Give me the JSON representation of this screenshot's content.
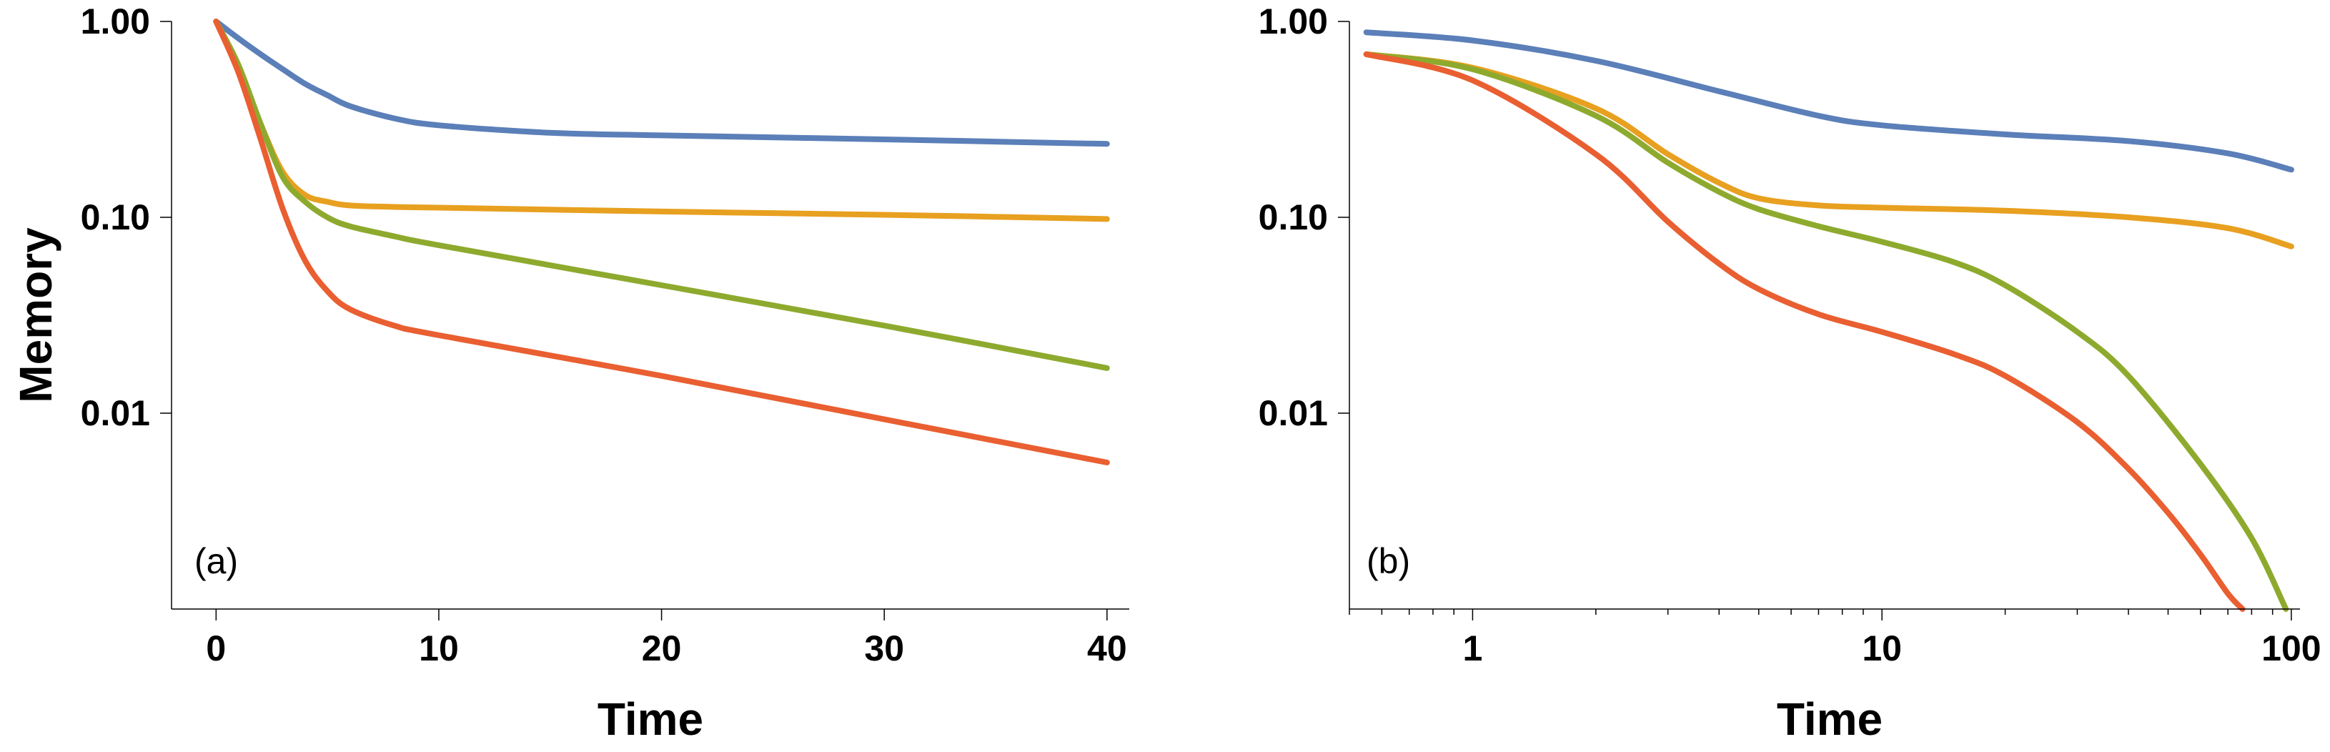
{
  "chart_data": [
    {
      "type": "line",
      "panel_label": "(a)",
      "xlabel": "Time",
      "ylabel": "Memory",
      "xscale": "linear",
      "yscale": "log",
      "xlim": [
        -2,
        41
      ],
      "ylim": [
        0.001,
        1.0
      ],
      "grid": false,
      "x_ticks": [
        0,
        10,
        20,
        30,
        40
      ],
      "x_tick_labels": [
        "0",
        "10",
        "20",
        "30",
        "40"
      ],
      "y_ticks": [
        1.0,
        0.1,
        0.01
      ],
      "y_tick_labels": [
        "1.00",
        "0.10",
        "0.01"
      ],
      "series": [
        {
          "name": "blue",
          "color": "#5b7fb8",
          "x": [
            0,
            1,
            2,
            3,
            4,
            5,
            6,
            8,
            10,
            15,
            20,
            30,
            40
          ],
          "y": [
            1.0,
            0.82,
            0.68,
            0.57,
            0.48,
            0.42,
            0.37,
            0.32,
            0.295,
            0.27,
            0.262,
            0.25,
            0.237
          ]
        },
        {
          "name": "orange",
          "color": "#e8a020",
          "x": [
            0,
            1,
            2,
            3,
            4,
            5,
            6,
            8,
            10,
            20,
            30,
            40
          ],
          "y": [
            1.0,
            0.6,
            0.3,
            0.17,
            0.13,
            0.12,
            0.115,
            0.113,
            0.112,
            0.107,
            0.103,
            0.098
          ]
        },
        {
          "name": "green",
          "color": "#8eaa2e",
          "x": [
            0,
            1,
            2,
            3,
            4,
            5,
            6,
            8,
            10,
            20,
            30,
            40
          ],
          "y": [
            1.0,
            0.6,
            0.3,
            0.16,
            0.12,
            0.1,
            0.09,
            0.08,
            0.072,
            0.045,
            0.028,
            0.017
          ]
        },
        {
          "name": "red",
          "color": "#e95f31",
          "x": [
            0,
            1,
            2,
            3,
            4,
            5,
            6,
            8,
            10,
            20,
            30,
            40
          ],
          "y": [
            1.0,
            0.55,
            0.25,
            0.11,
            0.06,
            0.042,
            0.034,
            0.028,
            0.025,
            0.0155,
            0.0093,
            0.0056
          ]
        }
      ]
    },
    {
      "type": "line",
      "panel_label": "(b)",
      "xlabel": "Time",
      "ylabel": "",
      "xscale": "log",
      "yscale": "log",
      "xlim": [
        0.5,
        105
      ],
      "ylim": [
        0.001,
        1.0
      ],
      "grid": false,
      "x_ticks": [
        1,
        10,
        100
      ],
      "x_tick_labels": [
        "1",
        "10",
        "100"
      ],
      "y_ticks": [
        1.0,
        0.1,
        0.01
      ],
      "y_tick_labels": [
        "1.00",
        "0.10",
        "0.01"
      ],
      "series": [
        {
          "name": "blue",
          "color": "#5b7fb8",
          "x": [
            0.55,
            1,
            2,
            4,
            7,
            10,
            20,
            40,
            70,
            100
          ],
          "y": [
            0.88,
            0.8,
            0.63,
            0.44,
            0.33,
            0.295,
            0.265,
            0.245,
            0.212,
            0.175
          ]
        },
        {
          "name": "orange",
          "color": "#e8a020",
          "x": [
            0.55,
            1,
            2,
            3,
            4,
            5,
            7,
            10,
            20,
            40,
            70,
            100
          ],
          "y": [
            0.68,
            0.58,
            0.36,
            0.21,
            0.15,
            0.125,
            0.115,
            0.112,
            0.108,
            0.1,
            0.088,
            0.071
          ]
        },
        {
          "name": "green",
          "color": "#8eaa2e",
          "x": [
            0.55,
            1,
            2,
            3,
            4,
            5,
            7,
            10,
            15,
            20,
            30,
            40,
            60,
            80,
            97
          ],
          "y": [
            0.68,
            0.57,
            0.33,
            0.19,
            0.135,
            0.11,
            0.09,
            0.075,
            0.059,
            0.045,
            0.026,
            0.0155,
            0.0055,
            0.0023,
            0.001
          ]
        },
        {
          "name": "red",
          "color": "#e95f31",
          "x": [
            0.55,
            1,
            2,
            3,
            4,
            5,
            7,
            10,
            15,
            20,
            30,
            40,
            50,
            60,
            70,
            76
          ],
          "y": [
            0.68,
            0.5,
            0.21,
            0.095,
            0.058,
            0.043,
            0.032,
            0.026,
            0.02,
            0.0155,
            0.009,
            0.0052,
            0.0031,
            0.0019,
            0.0012,
            0.001
          ]
        }
      ]
    }
  ]
}
